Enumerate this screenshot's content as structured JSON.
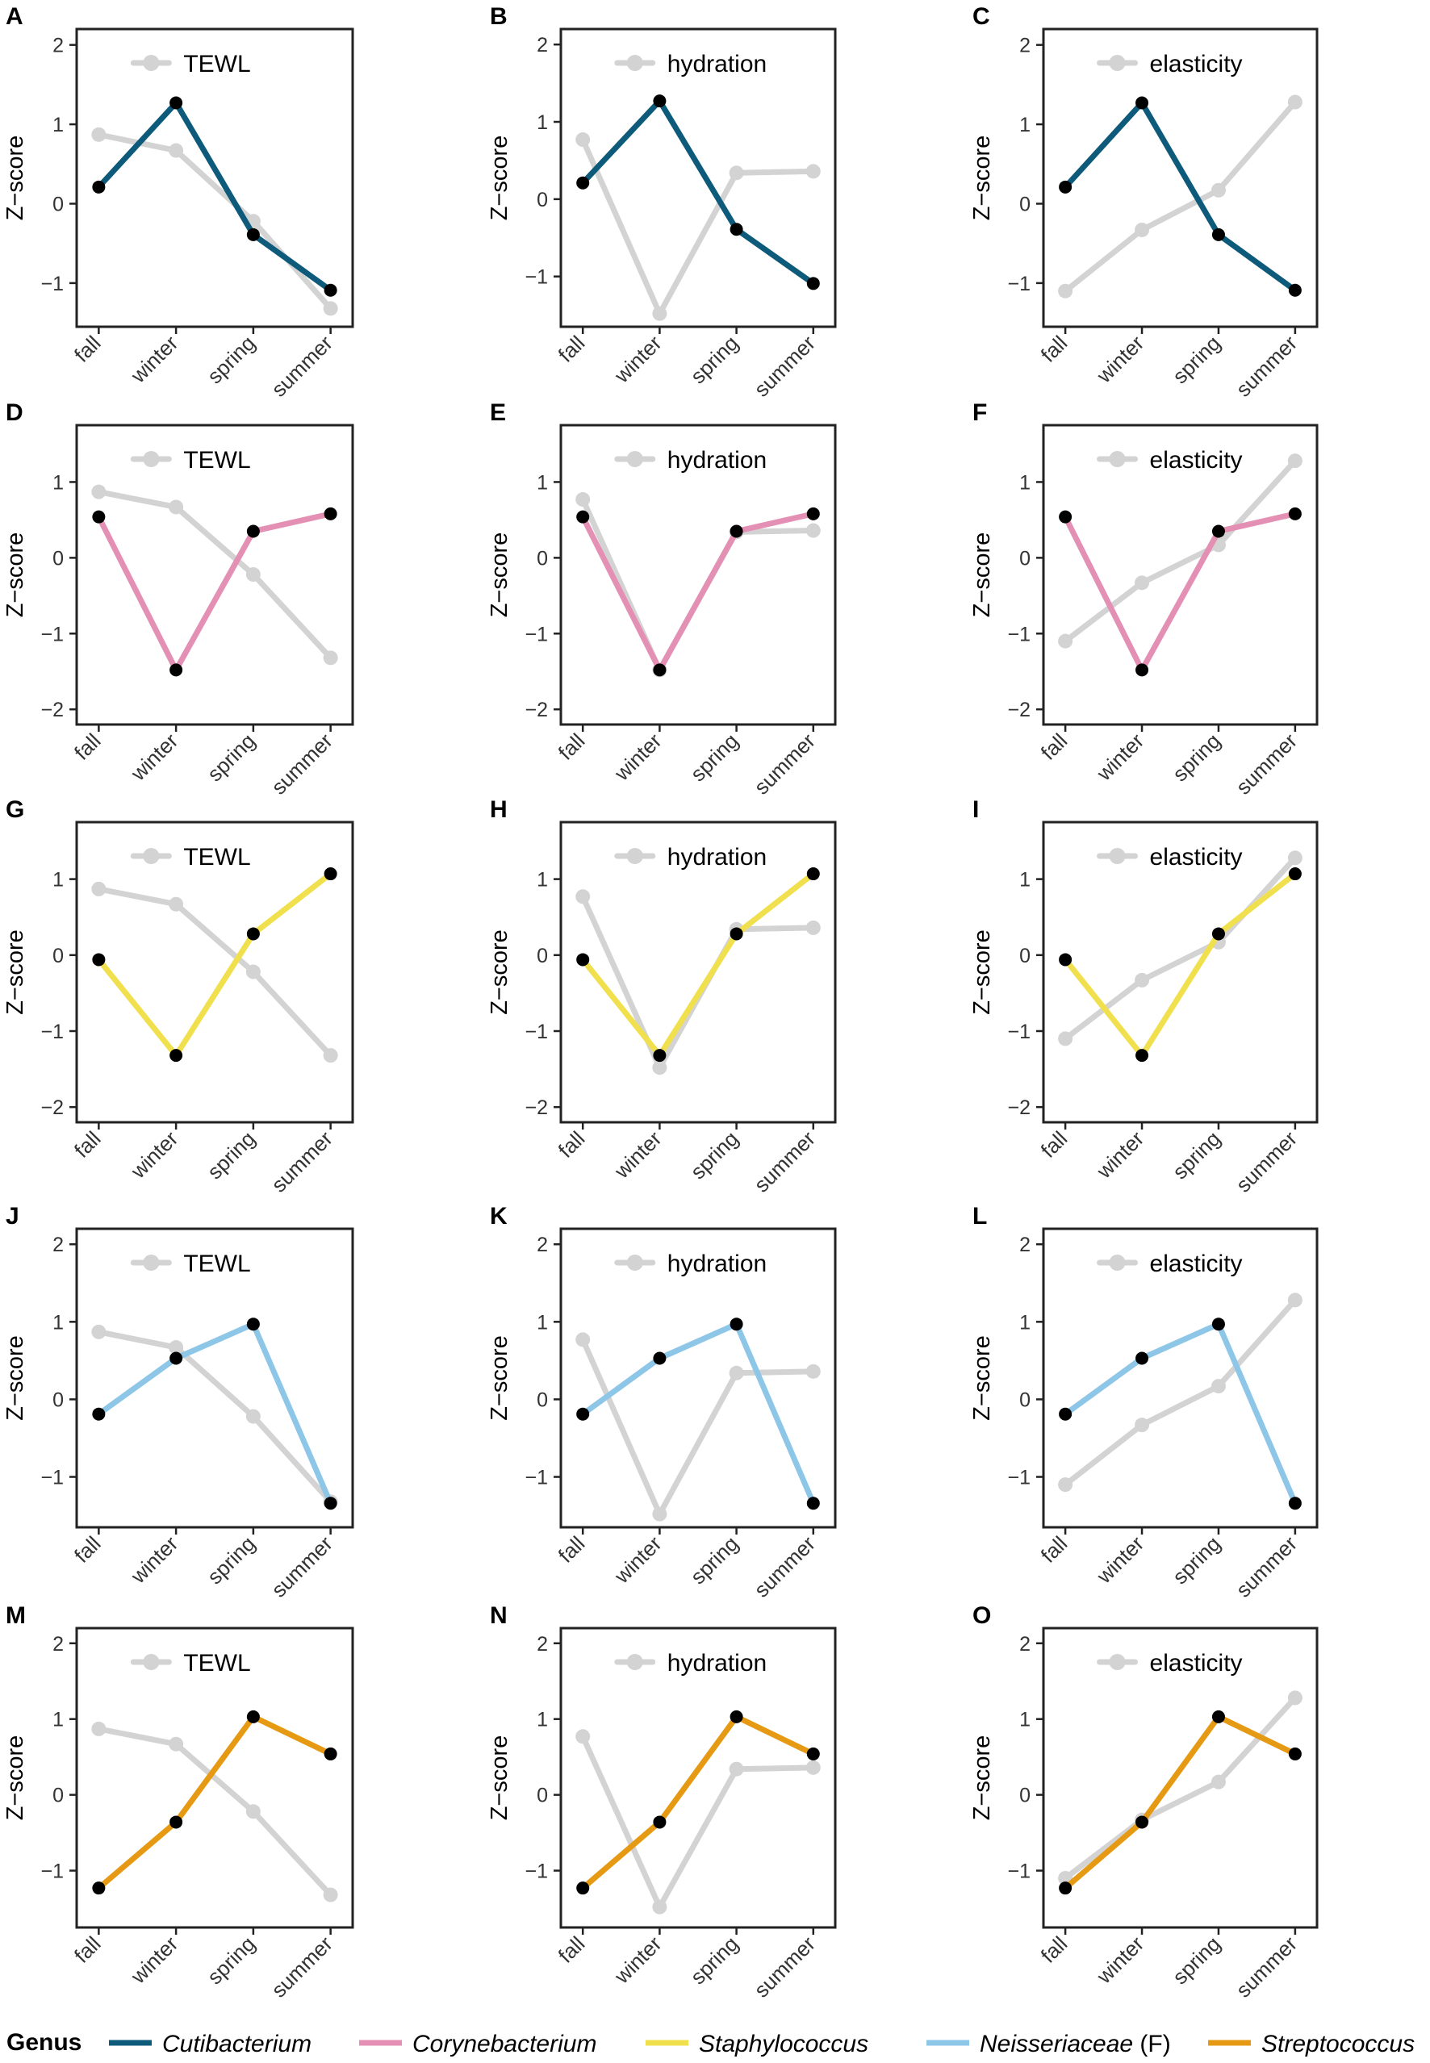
{
  "figure": {
    "y_axis_label": "Z−score",
    "genus_legend": {
      "title": "Genus",
      "entries": [
        {
          "name": "Cutibacterium",
          "suffix": "",
          "color": "#0D5A7A"
        },
        {
          "name": "Corynebacterium",
          "suffix": "",
          "color": "#E48FB4"
        },
        {
          "name": "Staphylococcus",
          "suffix": "",
          "color": "#F1E04E"
        },
        {
          "name": "Neisseriaceae",
          "suffix": " (F)",
          "color": "#8EC6E8"
        },
        {
          "name": "Streptococcus",
          "suffix": "",
          "color": "#E69A14"
        }
      ]
    }
  },
  "chart_data": [
    {
      "type": "line",
      "panel": "A",
      "legend": "TEWL",
      "categories": [
        "fall",
        "winter",
        "spring",
        "summer"
      ],
      "ylim": [
        -1.55,
        2.2
      ],
      "yticks": [
        -1,
        0,
        1,
        2
      ],
      "xlabel": "",
      "ylabel": "Z−score",
      "series": [
        {
          "name": "TEWL",
          "color": "#D3D3D3",
          "values": [
            0.87,
            0.67,
            -0.22,
            -1.32
          ]
        },
        {
          "name": "Cutibacterium",
          "color": "#0D5A7A",
          "values": [
            0.21,
            1.27,
            -0.39,
            -1.09
          ]
        }
      ]
    },
    {
      "type": "line",
      "panel": "B",
      "legend": "hydration",
      "categories": [
        "fall",
        "winter",
        "spring",
        "summer"
      ],
      "ylim": [
        -1.65,
        2.2
      ],
      "yticks": [
        -1,
        0,
        1,
        2
      ],
      "xlabel": "",
      "ylabel": "Z−score",
      "series": [
        {
          "name": "hydration",
          "color": "#D3D3D3",
          "values": [
            0.77,
            -1.48,
            0.34,
            0.36
          ]
        },
        {
          "name": "Cutibacterium",
          "color": "#0D5A7A",
          "values": [
            0.21,
            1.27,
            -0.39,
            -1.09
          ]
        }
      ]
    },
    {
      "type": "line",
      "panel": "C",
      "legend": "elasticity",
      "categories": [
        "fall",
        "winter",
        "spring",
        "summer"
      ],
      "ylim": [
        -1.55,
        2.2
      ],
      "yticks": [
        -1,
        0,
        1,
        2
      ],
      "xlabel": "",
      "ylabel": "Z−score",
      "series": [
        {
          "name": "elasticity",
          "color": "#D3D3D3",
          "values": [
            -1.1,
            -0.33,
            0.17,
            1.28
          ]
        },
        {
          "name": "Cutibacterium",
          "color": "#0D5A7A",
          "values": [
            0.21,
            1.27,
            -0.39,
            -1.09
          ]
        }
      ]
    },
    {
      "type": "line",
      "panel": "D",
      "legend": "TEWL",
      "categories": [
        "fall",
        "winter",
        "spring",
        "summer"
      ],
      "ylim": [
        -2.2,
        1.75
      ],
      "yticks": [
        -2,
        -1,
        0,
        1
      ],
      "xlabel": "",
      "ylabel": "Z−score",
      "series": [
        {
          "name": "TEWL",
          "color": "#D3D3D3",
          "values": [
            0.87,
            0.67,
            -0.22,
            -1.32
          ]
        },
        {
          "name": "Corynebacterium",
          "color": "#E48FB4",
          "values": [
            0.54,
            -1.48,
            0.35,
            0.58
          ]
        }
      ]
    },
    {
      "type": "line",
      "panel": "E",
      "legend": "hydration",
      "categories": [
        "fall",
        "winter",
        "spring",
        "summer"
      ],
      "ylim": [
        -2.2,
        1.75
      ],
      "yticks": [
        -2,
        -1,
        0,
        1
      ],
      "xlabel": "",
      "ylabel": "Z−score",
      "series": [
        {
          "name": "hydration",
          "color": "#D3D3D3",
          "values": [
            0.77,
            -1.48,
            0.34,
            0.36
          ]
        },
        {
          "name": "Corynebacterium",
          "color": "#E48FB4",
          "values": [
            0.54,
            -1.48,
            0.35,
            0.58
          ]
        }
      ]
    },
    {
      "type": "line",
      "panel": "F",
      "legend": "elasticity",
      "categories": [
        "fall",
        "winter",
        "spring",
        "summer"
      ],
      "ylim": [
        -2.2,
        1.75
      ],
      "yticks": [
        -2,
        -1,
        0,
        1
      ],
      "xlabel": "",
      "ylabel": "Z−score",
      "series": [
        {
          "name": "elasticity",
          "color": "#D3D3D3",
          "values": [
            -1.1,
            -0.33,
            0.17,
            1.28
          ]
        },
        {
          "name": "Corynebacterium",
          "color": "#E48FB4",
          "values": [
            0.54,
            -1.48,
            0.35,
            0.58
          ]
        }
      ]
    },
    {
      "type": "line",
      "panel": "G",
      "legend": "TEWL",
      "categories": [
        "fall",
        "winter",
        "spring",
        "summer"
      ],
      "ylim": [
        -2.2,
        1.75
      ],
      "yticks": [
        -2,
        -1,
        0,
        1
      ],
      "xlabel": "",
      "ylabel": "Z−score",
      "series": [
        {
          "name": "TEWL",
          "color": "#D3D3D3",
          "values": [
            0.87,
            0.67,
            -0.22,
            -1.32
          ]
        },
        {
          "name": "Staphylococcus",
          "color": "#F1E04E",
          "values": [
            -0.06,
            -1.32,
            0.28,
            1.07
          ]
        }
      ]
    },
    {
      "type": "line",
      "panel": "H",
      "legend": "hydration",
      "categories": [
        "fall",
        "winter",
        "spring",
        "summer"
      ],
      "ylim": [
        -2.2,
        1.75
      ],
      "yticks": [
        -2,
        -1,
        0,
        1
      ],
      "xlabel": "",
      "ylabel": "Z−score",
      "series": [
        {
          "name": "hydration",
          "color": "#D3D3D3",
          "values": [
            0.77,
            -1.48,
            0.34,
            0.36
          ]
        },
        {
          "name": "Staphylococcus",
          "color": "#F1E04E",
          "values": [
            -0.06,
            -1.32,
            0.28,
            1.07
          ]
        }
      ]
    },
    {
      "type": "line",
      "panel": "I",
      "legend": "elasticity",
      "categories": [
        "fall",
        "winter",
        "spring",
        "summer"
      ],
      "ylim": [
        -2.2,
        1.75
      ],
      "yticks": [
        -2,
        -1,
        0,
        1
      ],
      "xlabel": "",
      "ylabel": "Z−score",
      "series": [
        {
          "name": "elasticity",
          "color": "#D3D3D3",
          "values": [
            -1.1,
            -0.33,
            0.17,
            1.28
          ]
        },
        {
          "name": "Staphylococcus",
          "color": "#F1E04E",
          "values": [
            -0.06,
            -1.32,
            0.28,
            1.07
          ]
        }
      ]
    },
    {
      "type": "line",
      "panel": "J",
      "legend": "TEWL",
      "categories": [
        "fall",
        "winter",
        "spring",
        "summer"
      ],
      "ylim": [
        -1.65,
        2.2
      ],
      "yticks": [
        -1,
        0,
        1,
        2
      ],
      "xlabel": "",
      "ylabel": "Z−score",
      "series": [
        {
          "name": "TEWL",
          "color": "#D3D3D3",
          "values": [
            0.87,
            0.67,
            -0.22,
            -1.32
          ]
        },
        {
          "name": "Neisseriaceae",
          "color": "#8EC6E8",
          "values": [
            -0.19,
            0.53,
            0.97,
            -1.34
          ]
        }
      ]
    },
    {
      "type": "line",
      "panel": "K",
      "legend": "hydration",
      "categories": [
        "fall",
        "winter",
        "spring",
        "summer"
      ],
      "ylim": [
        -1.65,
        2.2
      ],
      "yticks": [
        -1,
        0,
        1,
        2
      ],
      "xlabel": "",
      "ylabel": "Z−score",
      "series": [
        {
          "name": "hydration",
          "color": "#D3D3D3",
          "values": [
            0.77,
            -1.48,
            0.34,
            0.36
          ]
        },
        {
          "name": "Neisseriaceae",
          "color": "#8EC6E8",
          "values": [
            -0.19,
            0.53,
            0.97,
            -1.34
          ]
        }
      ]
    },
    {
      "type": "line",
      "panel": "L",
      "legend": "elasticity",
      "categories": [
        "fall",
        "winter",
        "spring",
        "summer"
      ],
      "ylim": [
        -1.65,
        2.2
      ],
      "yticks": [
        -1,
        0,
        1,
        2
      ],
      "xlabel": "",
      "ylabel": "Z−score",
      "series": [
        {
          "name": "elasticity",
          "color": "#D3D3D3",
          "values": [
            -1.1,
            -0.33,
            0.17,
            1.28
          ]
        },
        {
          "name": "Neisseriaceae",
          "color": "#8EC6E8",
          "values": [
            -0.19,
            0.53,
            0.97,
            -1.34
          ]
        }
      ]
    },
    {
      "type": "line",
      "panel": "M",
      "legend": "TEWL",
      "categories": [
        "fall",
        "winter",
        "spring",
        "summer"
      ],
      "ylim": [
        -1.75,
        2.2
      ],
      "yticks": [
        -1,
        0,
        1,
        2
      ],
      "xlabel": "",
      "ylabel": "Z−score",
      "series": [
        {
          "name": "TEWL",
          "color": "#D3D3D3",
          "values": [
            0.87,
            0.67,
            -0.22,
            -1.32
          ]
        },
        {
          "name": "Streptococcus",
          "color": "#E69A14",
          "values": [
            -1.23,
            -0.36,
            1.03,
            0.54
          ]
        }
      ]
    },
    {
      "type": "line",
      "panel": "N",
      "legend": "hydration",
      "categories": [
        "fall",
        "winter",
        "spring",
        "summer"
      ],
      "ylim": [
        -1.75,
        2.2
      ],
      "yticks": [
        -1,
        0,
        1,
        2
      ],
      "xlabel": "",
      "ylabel": "Z−score",
      "series": [
        {
          "name": "hydration",
          "color": "#D3D3D3",
          "values": [
            0.77,
            -1.48,
            0.34,
            0.36
          ]
        },
        {
          "name": "Streptococcus",
          "color": "#E69A14",
          "values": [
            -1.23,
            -0.36,
            1.03,
            0.54
          ]
        }
      ]
    },
    {
      "type": "line",
      "panel": "O",
      "legend": "elasticity",
      "categories": [
        "fall",
        "winter",
        "spring",
        "summer"
      ],
      "ylim": [
        -1.75,
        2.2
      ],
      "yticks": [
        -1,
        0,
        1,
        2
      ],
      "xlabel": "",
      "ylabel": "Z−score",
      "series": [
        {
          "name": "elasticity",
          "color": "#D3D3D3",
          "values": [
            -1.1,
            -0.33,
            0.17,
            1.28
          ]
        },
        {
          "name": "Streptococcus",
          "color": "#E69A14",
          "values": [
            -1.23,
            -0.36,
            1.03,
            0.54
          ]
        }
      ]
    }
  ]
}
